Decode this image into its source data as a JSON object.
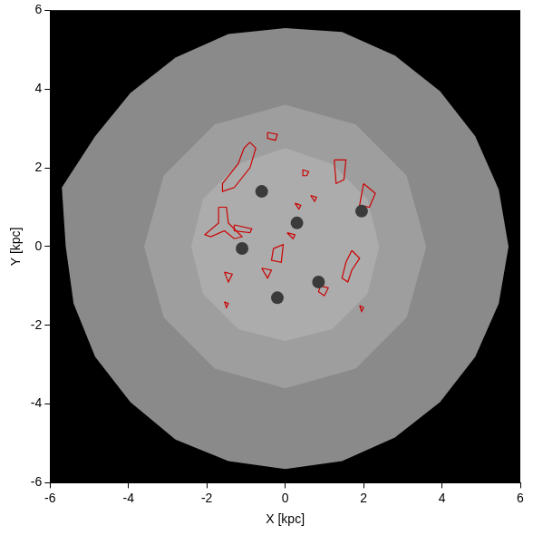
{
  "chart_data": {
    "type": "scatter",
    "x_label": "X [kpc]",
    "y_label": "Y [kpc]",
    "xlim": [
      -6,
      6
    ],
    "ylim": [
      -6,
      6
    ],
    "xticks": [
      -6,
      -4,
      -2,
      0,
      2,
      4,
      6
    ],
    "yticks": [
      -6,
      -4,
      -2,
      0,
      2,
      4,
      6
    ],
    "grid": false,
    "series": [
      {
        "type": "area",
        "color": "#8a8a8a",
        "x": [
          5.7,
          5.45,
          4.85,
          3.95,
          2.8,
          1.45,
          0,
          -1.45,
          -2.8,
          -3.95,
          -4.85,
          -5.7,
          -5.6,
          -5.4,
          -4.85,
          -3.95,
          -2.8,
          -1.45,
          0,
          1.45,
          2.8,
          3.95,
          4.85,
          5.45,
          5.7
        ],
        "y": [
          0,
          1.45,
          2.8,
          3.95,
          4.85,
          5.45,
          5.55,
          5.4,
          4.8,
          3.9,
          2.8,
          1.5,
          0,
          -1.45,
          -2.8,
          -3.95,
          -4.9,
          -5.45,
          -5.65,
          -5.45,
          -4.85,
          -3.95,
          -2.8,
          -1.45,
          0
        ]
      },
      {
        "type": "area",
        "color": "#9e9e9e",
        "x": [
          3.6,
          3.1,
          1.8,
          0,
          -1.8,
          -3.1,
          -3.6,
          -3.1,
          -1.8,
          0,
          1.8,
          3.1,
          3.6
        ],
        "y": [
          0,
          1.8,
          3.1,
          3.6,
          3.1,
          1.8,
          0,
          -1.8,
          -3.1,
          -3.6,
          -3.1,
          -1.8,
          0
        ]
      },
      {
        "type": "area",
        "color": "#acacac",
        "x": [
          2.4,
          2.1,
          1.2,
          0,
          -1.2,
          -2.1,
          -2.4,
          -2.1,
          -1.2,
          0,
          1.2,
          2.1,
          2.4
        ],
        "y": [
          0,
          1.2,
          2.1,
          2.5,
          2.1,
          1.2,
          0,
          -1.2,
          -2.1,
          -2.4,
          -2.1,
          -1.2,
          0
        ]
      },
      {
        "type": "scatter",
        "color": "#3a3a3a",
        "marker": "circle",
        "x": [
          -1.1,
          0.85,
          1.95,
          -0.6,
          0.3,
          -0.2
        ],
        "y": [
          -0.05,
          -0.9,
          0.9,
          1.4,
          0.6,
          -1.3
        ]
      },
      {
        "type": "scatter",
        "color": "#000000",
        "marker": "circle",
        "x": [
          -1.1
        ],
        "y": [
          -0.05
        ]
      },
      {
        "type": "line",
        "color": "#cc0000",
        "line_style": "solid",
        "x": [
          -0.9,
          -0.75,
          -0.9,
          -1.3,
          -1.6,
          -1.6,
          -1.2,
          -1.05,
          -0.9
        ],
        "y": [
          2.65,
          2.5,
          2.0,
          1.5,
          1.4,
          1.6,
          2.1,
          2.5,
          2.65
        ]
      },
      {
        "type": "line",
        "color": "#cc0000",
        "line_style": "solid",
        "x": [
          -1.7,
          -1.5,
          -1.45,
          -1.1,
          -1.3,
          -1.55,
          -1.9,
          -2.05,
          -1.7,
          -1.7
        ],
        "y": [
          1.0,
          1.0,
          0.6,
          0.25,
          0.2,
          0.4,
          0.25,
          0.3,
          0.6,
          1.0
        ]
      },
      {
        "type": "line",
        "color": "#cc0000",
        "line_style": "solid",
        "x": [
          -1.3,
          -0.85,
          -0.9,
          -1.3,
          -1.3
        ],
        "y": [
          0.55,
          0.45,
          0.35,
          0.4,
          0.55
        ]
      },
      {
        "type": "line",
        "color": "#cc0000",
        "line_style": "solid",
        "x": [
          -0.45,
          -0.2,
          -0.25,
          -0.45,
          -0.45
        ],
        "y": [
          2.9,
          2.85,
          2.7,
          2.75,
          2.9
        ]
      },
      {
        "type": "line",
        "color": "#cc0000",
        "line_style": "solid",
        "x": [
          1.25,
          1.55,
          1.5,
          1.3,
          1.25
        ],
        "y": [
          2.2,
          2.2,
          1.7,
          1.6,
          2.2
        ]
      },
      {
        "type": "line",
        "color": "#cc0000",
        "line_style": "solid",
        "x": [
          2.0,
          2.3,
          2.15,
          1.9,
          2.0
        ],
        "y": [
          1.6,
          1.35,
          1.0,
          1.05,
          1.6
        ]
      },
      {
        "type": "line",
        "color": "#cc0000",
        "line_style": "solid",
        "x": [
          0.45,
          0.6,
          0.55,
          0.45,
          0.45
        ],
        "y": [
          1.95,
          1.9,
          1.8,
          1.8,
          1.95
        ]
      },
      {
        "type": "line",
        "color": "#cc0000",
        "line_style": "solid",
        "x": [
          0.25,
          0.4,
          0.35,
          0.25
        ],
        "y": [
          1.1,
          1.05,
          0.95,
          1.1
        ]
      },
      {
        "type": "line",
        "color": "#cc0000",
        "line_style": "solid",
        "x": [
          0.65,
          0.8,
          0.75,
          0.65
        ],
        "y": [
          1.3,
          1.25,
          1.15,
          1.3
        ]
      },
      {
        "type": "line",
        "color": "#cc0000",
        "line_style": "solid",
        "x": [
          -0.3,
          -0.05,
          -0.1,
          -0.35,
          -0.3
        ],
        "y": [
          -0.05,
          0.05,
          -0.4,
          -0.35,
          -0.05
        ]
      },
      {
        "type": "line",
        "color": "#cc0000",
        "line_style": "solid",
        "x": [
          1.7,
          1.9,
          1.7,
          1.6,
          1.45,
          1.55,
          1.7
        ],
        "y": [
          -0.1,
          -0.3,
          -0.6,
          -0.9,
          -0.8,
          -0.4,
          -0.1
        ]
      },
      {
        "type": "line",
        "color": "#cc0000",
        "line_style": "solid",
        "x": [
          0.9,
          1.1,
          1.0,
          0.85,
          0.9
        ],
        "y": [
          -1.0,
          -1.05,
          -1.25,
          -1.15,
          -1.0
        ]
      },
      {
        "type": "line",
        "color": "#cc0000",
        "line_style": "solid",
        "x": [
          -1.55,
          -1.35,
          -1.45,
          -1.55
        ],
        "y": [
          -0.65,
          -0.7,
          -0.9,
          -0.65
        ]
      },
      {
        "type": "line",
        "color": "#cc0000",
        "line_style": "solid",
        "x": [
          -1.55,
          -1.45,
          -1.5,
          -1.55
        ],
        "y": [
          -1.4,
          -1.45,
          -1.55,
          -1.4
        ]
      },
      {
        "type": "line",
        "color": "#cc0000",
        "line_style": "solid",
        "x": [
          1.9,
          2.0,
          1.95,
          1.9
        ],
        "y": [
          -1.5,
          -1.55,
          -1.65,
          -1.5
        ]
      },
      {
        "type": "line",
        "color": "#cc0000",
        "line_style": "solid",
        "x": [
          -0.6,
          -0.35,
          -0.45,
          -0.6
        ],
        "y": [
          -0.55,
          -0.6,
          -0.8,
          -0.55
        ]
      },
      {
        "type": "line",
        "color": "#cc0000",
        "line_style": "solid",
        "x": [
          0.05,
          0.25,
          0.2,
          0.05
        ],
        "y": [
          0.35,
          0.3,
          0.2,
          0.35
        ]
      }
    ]
  }
}
